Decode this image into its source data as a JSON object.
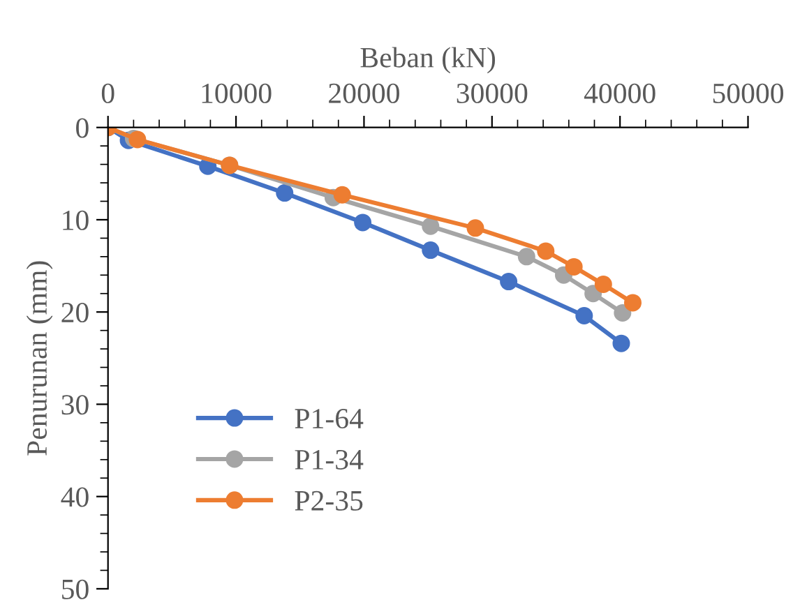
{
  "chart_data": {
    "type": "line",
    "xlabel": "Beban (kN)",
    "ylabel": "Penurunan (mm)",
    "xlim": [
      0,
      50000
    ],
    "xticks": [
      0,
      10000,
      20000,
      30000,
      40000,
      50000
    ],
    "ylim": [
      50,
      0
    ],
    "yticks": [
      0,
      10,
      20,
      30,
      40,
      50
    ],
    "grid": false,
    "legend": "bottom left",
    "marker": "circle",
    "line_style": "solid",
    "series": [
      {
        "name": "P1-64",
        "color": "#4472c4",
        "x": [
          0,
          1600,
          7800,
          13800,
          19900,
          25200,
          31300,
          37200,
          40100
        ],
        "values": [
          0,
          1.4,
          4.2,
          7.1,
          10.3,
          13.3,
          16.7,
          20.4,
          23.4
        ]
      },
      {
        "name": "P1-34",
        "color": "#a5a5a5",
        "x": [
          0,
          2000,
          9500,
          17600,
          25200,
          32700,
          35600,
          37900,
          40200
        ],
        "values": [
          0,
          1.2,
          4.1,
          7.6,
          10.7,
          14.0,
          16.0,
          18.0,
          20.1
        ]
      },
      {
        "name": "P2-35",
        "color": "#ed7d31",
        "x": [
          0,
          2300,
          9500,
          18300,
          28700,
          34200,
          36400,
          38700,
          41000
        ],
        "values": [
          0,
          1.3,
          4.1,
          7.3,
          10.9,
          13.4,
          15.1,
          17.0,
          19.0
        ]
      }
    ]
  }
}
